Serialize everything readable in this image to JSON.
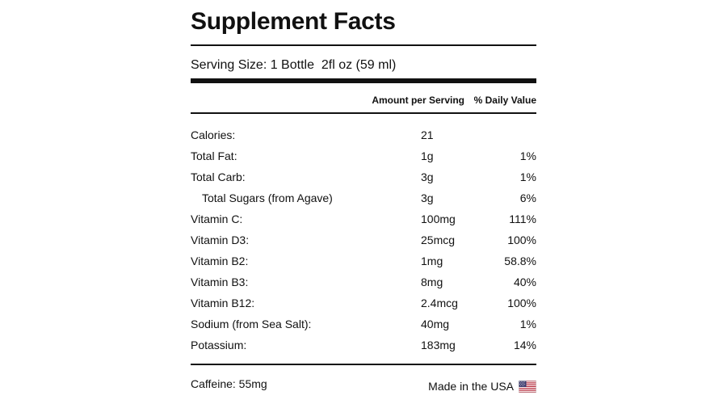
{
  "title": "Supplement Facts",
  "serving": "Serving Size: 1 Bottle  2fl oz (59 ml)",
  "headers": {
    "amount": "Amount per Serving",
    "daily_value": "% Daily Value"
  },
  "rows": [
    {
      "name": "Calories:",
      "amount": "21",
      "dv": ""
    },
    {
      "name": "Total Fat:",
      "amount": "1g",
      "dv": "1%"
    },
    {
      "name": "Total Carb:",
      "amount": "3g",
      "dv": "1%"
    },
    {
      "name": "Total Sugars (from Agave)",
      "amount": "3g",
      "dv": "6%"
    },
    {
      "name": "Vitamin C:",
      "amount": "100mg",
      "dv": "111%"
    },
    {
      "name": "Vitamin D3:",
      "amount": "25mcg",
      "dv": "100%"
    },
    {
      "name": "Vitamin B2:",
      "amount": "1mg",
      "dv": "58.8%"
    },
    {
      "name": "Vitamin B3:",
      "amount": "8mg",
      "dv": "40%"
    },
    {
      "name": "Vitamin B12:",
      "amount": "2.4mcg",
      "dv": "100%"
    },
    {
      "name": "Sodium (from Sea Salt):",
      "amount": "40mg",
      "dv": "1%"
    },
    {
      "name": "Potassium:",
      "amount": "183mg",
      "dv": "14%"
    }
  ],
  "footer": {
    "caffeine": "Caffeine: 55mg",
    "made_in": "Made in the USA",
    "flag_icon": "us-flag-icon"
  },
  "colors": {
    "text": "#111111",
    "flag_red": "#b22234",
    "flag_blue": "#3c3b6e"
  }
}
